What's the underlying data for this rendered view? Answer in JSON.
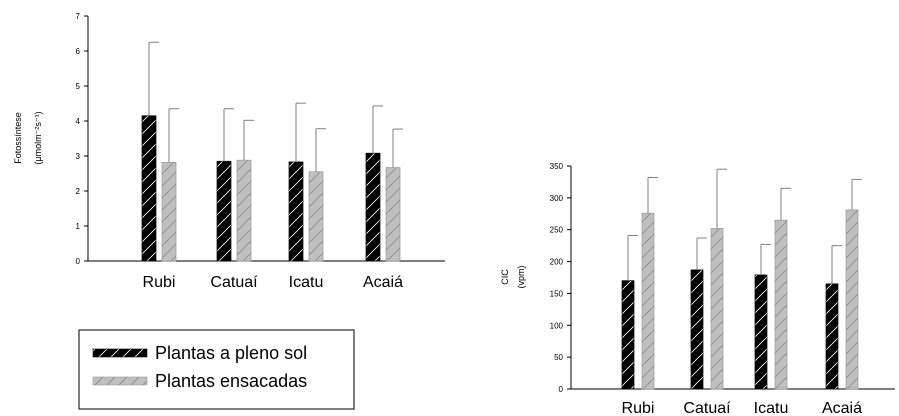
{
  "colors": {
    "solid_fill": "#000000",
    "bagged_fill": "#bfbfbf",
    "axis": "#000000",
    "error_bar": "#808080"
  },
  "legend": {
    "entries": [
      {
        "label": "Plantas a pleno sol",
        "color": "#000000"
      },
      {
        "label": "Plantas ensacadas",
        "color": "#bfbfbf"
      }
    ]
  },
  "chart_data": [
    {
      "type": "bar",
      "ylabel": "Fotossíntese",
      "yunit": "(μmolm⁻²s⁻¹)",
      "categories": [
        "Rubi",
        "Catuaí",
        "Icatu",
        "Acaiá"
      ],
      "ylim": [
        0,
        7
      ],
      "yticks": [
        0,
        1,
        2,
        3,
        4,
        5,
        6,
        7
      ],
      "grid": false,
      "legend_position": "below-left",
      "series": [
        {
          "name": "Plantas a pleno sol",
          "values": [
            4.15,
            2.85,
            2.83,
            3.08
          ],
          "errors": [
            2.1,
            1.5,
            1.68,
            1.35
          ]
        },
        {
          "name": "Plantas ensacadas",
          "values": [
            2.82,
            2.88,
            2.55,
            2.67
          ],
          "errors": [
            1.53,
            1.14,
            1.23,
            1.1
          ]
        }
      ]
    },
    {
      "type": "bar",
      "ylabel": "CIC",
      "yunit": "(vpm)",
      "categories": [
        "Rubi",
        "Catuaí",
        "Icatu",
        "Acaiá"
      ],
      "ylim": [
        0,
        350
      ],
      "yticks": [
        0,
        50,
        100,
        150,
        200,
        250,
        300,
        350
      ],
      "grid": false,
      "series": [
        {
          "name": "Plantas a pleno sol",
          "values": [
            170,
            187,
            179,
            165
          ],
          "errors": [
            71,
            50,
            48,
            60
          ]
        },
        {
          "name": "Plantas ensacadas",
          "values": [
            276,
            252,
            265,
            281
          ],
          "errors": [
            56,
            93,
            50,
            48
          ]
        }
      ]
    }
  ]
}
